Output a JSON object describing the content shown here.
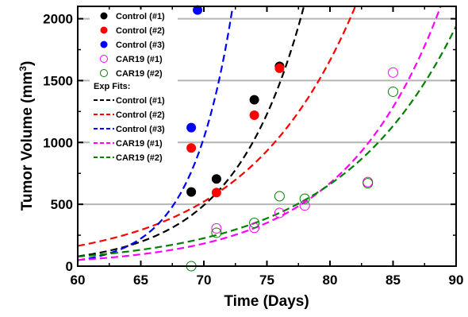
{
  "chart_data": {
    "type": "scatter",
    "xlabel": "Time (Days)",
    "ylabel": "Tumor Volume (mm",
    "ylabel_sup": "3",
    "ylabel_close": ")",
    "xlim": [
      60,
      90
    ],
    "ylim": [
      0,
      2100
    ],
    "xticks": [
      60,
      65,
      70,
      75,
      80,
      85,
      90
    ],
    "yticks": [
      0,
      500,
      1000,
      1500,
      2000
    ],
    "grid": "horizontal",
    "legend_position": "top-left",
    "legend_fit_heading": "Exp Fits:",
    "series": [
      {
        "name": "Control (#1)",
        "color": "#000000",
        "marker": "filled-circle",
        "points": [
          [
            69,
            600
          ],
          [
            71,
            705
          ],
          [
            74,
            1345
          ],
          [
            76,
            1615
          ]
        ]
      },
      {
        "name": "Control (#2)",
        "color": "#ff0000",
        "marker": "filled-circle",
        "points": [
          [
            69,
            955
          ],
          [
            71,
            595
          ],
          [
            74,
            1220
          ],
          [
            76,
            1600
          ]
        ]
      },
      {
        "name": "Control (#3)",
        "color": "#0000ff",
        "marker": "filled-circle",
        "points": [
          [
            69,
            1120
          ],
          [
            69.5,
            2070
          ]
        ]
      },
      {
        "name": "CAR19 (#1)",
        "color": "#ff00ff",
        "marker": "open-circle",
        "points": [
          [
            71,
            305
          ],
          [
            74,
            310
          ],
          [
            76,
            430
          ],
          [
            78,
            490
          ],
          [
            83,
            680
          ],
          [
            85,
            1565
          ]
        ]
      },
      {
        "name": "CAR19 (#2)",
        "color": "#008000",
        "marker": "open-circle",
        "points": [
          [
            69,
            0
          ],
          [
            71,
            270
          ],
          [
            74,
            350
          ],
          [
            76,
            565
          ],
          [
            78,
            545
          ],
          [
            83,
            670
          ],
          [
            85,
            1410
          ]
        ]
      }
    ],
    "fits": [
      {
        "name": "Control (#1)",
        "color": "#000000",
        "a": 0.001357,
        "b": 0.18288
      },
      {
        "name": "Control (#2)",
        "color": "#ff0000",
        "a": 0.1564,
        "b": 0.1159
      },
      {
        "name": "Control (#3)",
        "color": "#0000ff",
        "a": 4.656e-07,
        "b": 0.3075
      },
      {
        "name": "CAR19 (#1)",
        "color": "#ff00ff",
        "a": 0.02042,
        "b": 0.13
      },
      {
        "name": "CAR19 (#2)",
        "color": "#008000",
        "a": 0.1219,
        "b": 0.1075
      }
    ]
  }
}
